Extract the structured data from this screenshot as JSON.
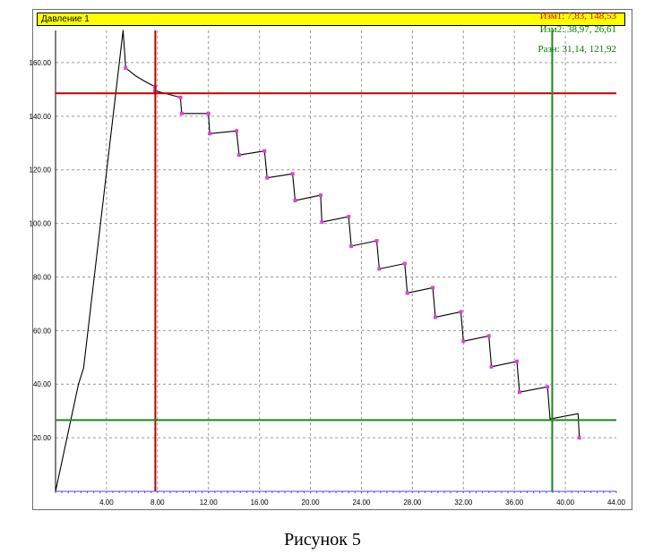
{
  "window": {
    "title": "Давление 1"
  },
  "readouts": [
    {
      "text": "Изм1: 7,83, 148,53",
      "color": "#d40000"
    },
    {
      "text": "Изм2: 38,97, 26,61",
      "color": "#007a00"
    },
    {
      "text": "Разн: 31,14, 121,92",
      "color": "#007a00"
    }
  ],
  "caption": "Рисунок 5",
  "chart_data": {
    "type": "line",
    "title": "Давление 1",
    "xlabel": "",
    "ylabel": "",
    "xlim": [
      0,
      44
    ],
    "ylim": [
      0,
      172
    ],
    "grid": true,
    "x_ticks": [
      4,
      8,
      12,
      16,
      20,
      24,
      28,
      32,
      36,
      40,
      44
    ],
    "x_tick_labels": [
      "4.00",
      "8.00",
      "12.00",
      "16.00",
      "20.00",
      "24.00",
      "28.00",
      "32.00",
      "36.00",
      "40.00",
      "44.00"
    ],
    "y_ticks": [
      20,
      40,
      60,
      80,
      100,
      120,
      140,
      160
    ],
    "y_tick_labels": [
      "20.00",
      "40.00",
      "60.00",
      "80.00",
      "100.00",
      "120.00",
      "140.00",
      "160.00"
    ],
    "line_color": "#000000",
    "marker_color": "#e040e0",
    "series": [
      {
        "values": [
          [
            0,
            0
          ],
          [
            1.8,
            40
          ],
          [
            2.2,
            46
          ],
          [
            5.3,
            172
          ],
          [
            5.5,
            158
          ],
          [
            6.3,
            155
          ],
          [
            7.0,
            153
          ],
          [
            7.8,
            151
          ],
          [
            7.8,
            149.5
          ],
          [
            9.8,
            147
          ],
          [
            9.9,
            141
          ],
          [
            12.0,
            141
          ],
          [
            12.1,
            133.5
          ],
          [
            14.2,
            134.5
          ],
          [
            14.4,
            125.5
          ],
          [
            16.4,
            127
          ],
          [
            16.6,
            117
          ],
          [
            18.6,
            118.5
          ],
          [
            18.8,
            108.5
          ],
          [
            20.8,
            110.5
          ],
          [
            20.9,
            100.5
          ],
          [
            23.0,
            102.5
          ],
          [
            23.2,
            91.5
          ],
          [
            25.2,
            93.5
          ],
          [
            25.4,
            83
          ],
          [
            27.4,
            85
          ],
          [
            27.6,
            74
          ],
          [
            29.6,
            76
          ],
          [
            29.8,
            65
          ],
          [
            31.8,
            67
          ],
          [
            32.0,
            56
          ],
          [
            34.0,
            58
          ],
          [
            34.2,
            46.5
          ],
          [
            36.2,
            48.5
          ],
          [
            36.4,
            37
          ],
          [
            38.6,
            39
          ],
          [
            38.8,
            27
          ],
          [
            41.0,
            29
          ],
          [
            41.1,
            20
          ]
        ]
      }
    ],
    "markers": [
      [
        5.5,
        158
      ],
      [
        7.8,
        151
      ],
      [
        7.8,
        149.5
      ],
      [
        9.8,
        147
      ],
      [
        9.9,
        141
      ],
      [
        12.0,
        141
      ],
      [
        12.1,
        133.5
      ],
      [
        14.2,
        134.5
      ],
      [
        14.4,
        125.5
      ],
      [
        16.4,
        127
      ],
      [
        16.6,
        117
      ],
      [
        18.6,
        118.5
      ],
      [
        18.8,
        108.5
      ],
      [
        20.8,
        110.5
      ],
      [
        20.9,
        100.5
      ],
      [
        23.0,
        102.5
      ],
      [
        23.2,
        91.5
      ],
      [
        25.2,
        93.5
      ],
      [
        25.4,
        83
      ],
      [
        27.4,
        85
      ],
      [
        27.6,
        74
      ],
      [
        29.6,
        76
      ],
      [
        29.8,
        65
      ],
      [
        31.8,
        67
      ],
      [
        32.0,
        56
      ],
      [
        34.0,
        58
      ],
      [
        34.2,
        46.5
      ],
      [
        36.2,
        48.5
      ],
      [
        36.4,
        37
      ],
      [
        38.6,
        39
      ],
      [
        41.1,
        20
      ]
    ],
    "cursors": [
      {
        "name": "Изм1",
        "x": 7.83,
        "y": 148.53,
        "color": "#c00000"
      },
      {
        "name": "Изм2",
        "x": 38.97,
        "y": 26.61,
        "color": "#1a8a1a"
      }
    ]
  }
}
